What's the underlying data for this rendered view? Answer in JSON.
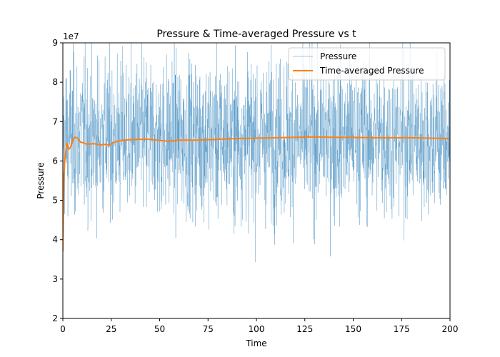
{
  "chart_data": {
    "type": "line",
    "title": "Pressure & Time-averaged Pressure vs t",
    "xlabel": "Time",
    "ylabel": "Pressure",
    "y_multiplier_label": "1e7",
    "xlim": [
      0,
      200
    ],
    "ylim": [
      2,
      9
    ],
    "y_scale_factor": 10000000,
    "x_ticks": [
      0,
      25,
      50,
      75,
      100,
      125,
      150,
      175,
      200
    ],
    "y_ticks": [
      2,
      3,
      4,
      5,
      6,
      7,
      8,
      9
    ],
    "grid": false,
    "legend_position": "upper-right",
    "series": [
      {
        "name": "Pressure",
        "color": "#1f77b4",
        "style": "thin-noisy",
        "num_points": 2000,
        "x_range": [
          0,
          200
        ],
        "mean": 6.6,
        "std": 1.0,
        "observed_min": 2.9,
        "observed_max": 9.0
      },
      {
        "name": "Time-averaged Pressure",
        "color": "#ff7f0e",
        "x": [
          0,
          0.5,
          1,
          2,
          3,
          4,
          5,
          6,
          7,
          8,
          9,
          10,
          12,
          14,
          16,
          18,
          20,
          22,
          24,
          26,
          28,
          30,
          35,
          40,
          45,
          50,
          55,
          60,
          70,
          80,
          90,
          100,
          110,
          120,
          130,
          140,
          150,
          160,
          170,
          180,
          190,
          200
        ],
        "values": [
          3.7,
          5.6,
          6.0,
          6.45,
          6.3,
          6.35,
          6.5,
          6.6,
          6.6,
          6.55,
          6.48,
          6.47,
          6.43,
          6.43,
          6.44,
          6.42,
          6.41,
          6.42,
          6.4,
          6.46,
          6.5,
          6.52,
          6.54,
          6.55,
          6.55,
          6.52,
          6.5,
          6.53,
          6.53,
          6.55,
          6.57,
          6.58,
          6.59,
          6.6,
          6.61,
          6.6,
          6.6,
          6.59,
          6.59,
          6.59,
          6.58,
          6.57
        ]
      }
    ]
  }
}
